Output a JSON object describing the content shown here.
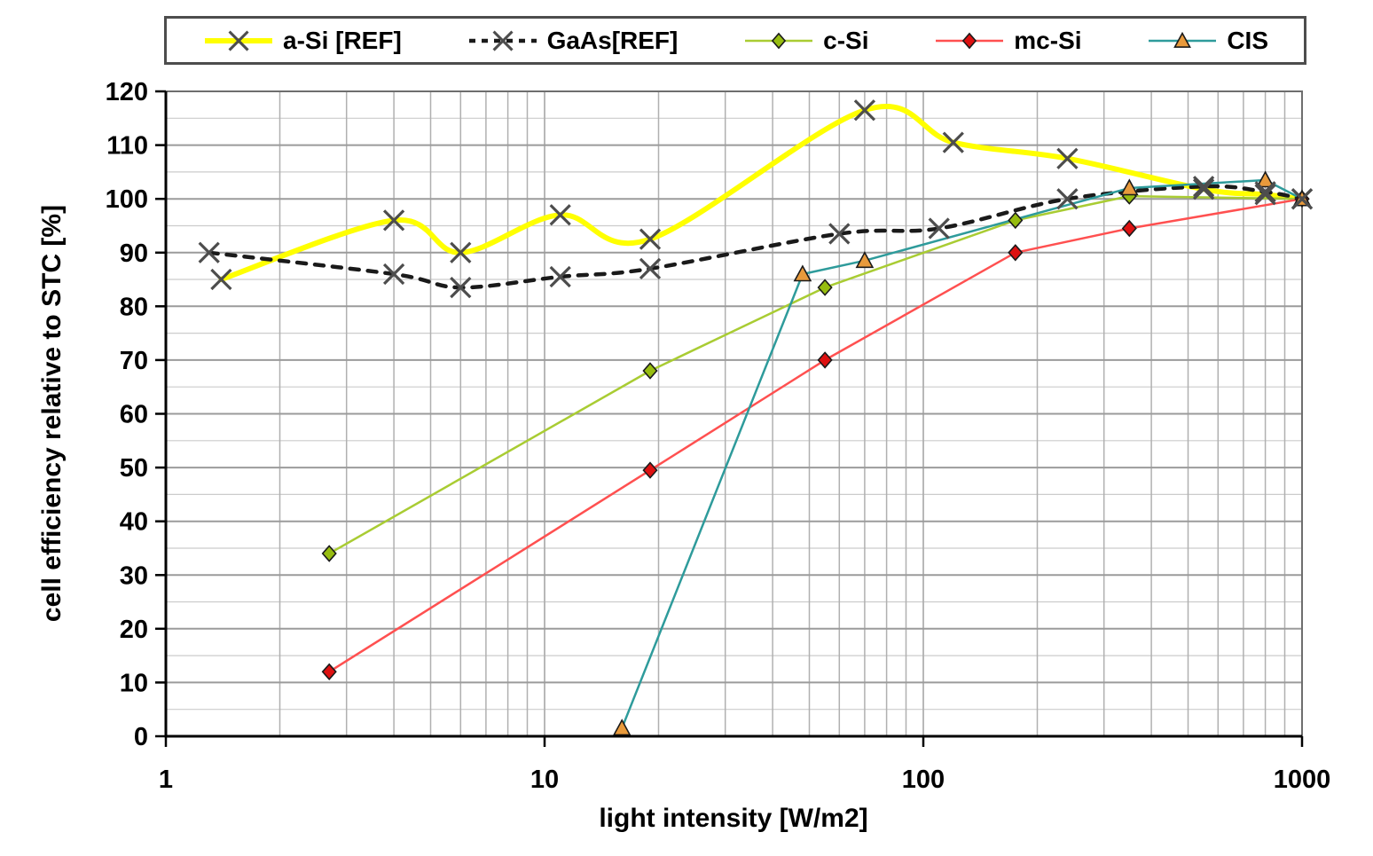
{
  "chart_data": {
    "type": "line",
    "title": "",
    "x_scale": "log",
    "xlabel": "light intensity [W/m2]",
    "ylabel": "cell efficiency relative to STC [%]",
    "xlim": [
      1,
      1000
    ],
    "ylim": [
      0,
      120
    ],
    "x_ticks": [
      1,
      10,
      100,
      1000
    ],
    "x_tick_labels": [
      "1",
      "10",
      "100",
      "1000"
    ],
    "y_ticks": [
      0,
      10,
      20,
      30,
      40,
      50,
      60,
      70,
      80,
      90,
      100,
      110,
      120
    ],
    "y_minor_step": 5,
    "grid": true,
    "legend_position": "top",
    "colors": {
      "major_grid": "#9b9b9b",
      "minor_grid": "#cccccc",
      "vertical_grid": "#b0b0b0",
      "axis": "#000000",
      "plot_border": "#6e6e6e"
    },
    "series": [
      {
        "name": "a-Si [REF]",
        "line_color": "#FFFF00",
        "line_width": 6,
        "line_style": "solid",
        "smooth": true,
        "marker": "x",
        "marker_color": "#4d4d4d",
        "points": [
          [
            1.4,
            85
          ],
          [
            4,
            96
          ],
          [
            6,
            90
          ],
          [
            11,
            97
          ],
          [
            19,
            92.5
          ],
          [
            70,
            116.5
          ],
          [
            120,
            110.5
          ],
          [
            240,
            107.5
          ],
          [
            550,
            101.8
          ],
          [
            800,
            100.8
          ],
          [
            1000,
            100
          ]
        ]
      },
      {
        "name": "GaAs[REF]",
        "line_color": "#1a1a1a",
        "line_width": 4.5,
        "line_style": "dashed",
        "smooth": true,
        "marker": "x",
        "marker_color": "#4d4d4d",
        "points": [
          [
            1.3,
            90
          ],
          [
            4,
            86
          ],
          [
            6,
            83.5
          ],
          [
            11,
            85.5
          ],
          [
            19,
            87
          ],
          [
            60,
            93.5
          ],
          [
            110,
            94.5
          ],
          [
            240,
            100
          ],
          [
            550,
            102.3
          ],
          [
            800,
            101.3
          ],
          [
            1000,
            100
          ]
        ]
      },
      {
        "name": "c-Si",
        "line_color": "#A9CC33",
        "line_width": 2.5,
        "line_style": "solid",
        "smooth": false,
        "marker": "diamond",
        "marker_color": "#97BD10",
        "points": [
          [
            2.7,
            34
          ],
          [
            19,
            68
          ],
          [
            55,
            83.5
          ],
          [
            175,
            96
          ],
          [
            350,
            100.5
          ],
          [
            1000,
            100
          ]
        ]
      },
      {
        "name": "mc-Si",
        "line_color": "#FF5050",
        "line_width": 2.5,
        "line_style": "solid",
        "smooth": false,
        "marker": "diamond",
        "marker_color": "#DD1111",
        "points": [
          [
            2.7,
            12
          ],
          [
            19,
            49.5
          ],
          [
            55,
            70
          ],
          [
            175,
            90
          ],
          [
            350,
            94.5
          ],
          [
            1000,
            100
          ]
        ]
      },
      {
        "name": "CIS",
        "line_color": "#2E9B9B",
        "line_width": 2.5,
        "line_style": "solid",
        "smooth": false,
        "marker": "triangle",
        "marker_color": "#E89A3C",
        "points": [
          [
            16,
            1.5
          ],
          [
            48,
            86
          ],
          [
            70,
            88.5
          ],
          [
            350,
            102
          ],
          [
            800,
            103.5
          ],
          [
            1000,
            100
          ]
        ]
      }
    ]
  }
}
